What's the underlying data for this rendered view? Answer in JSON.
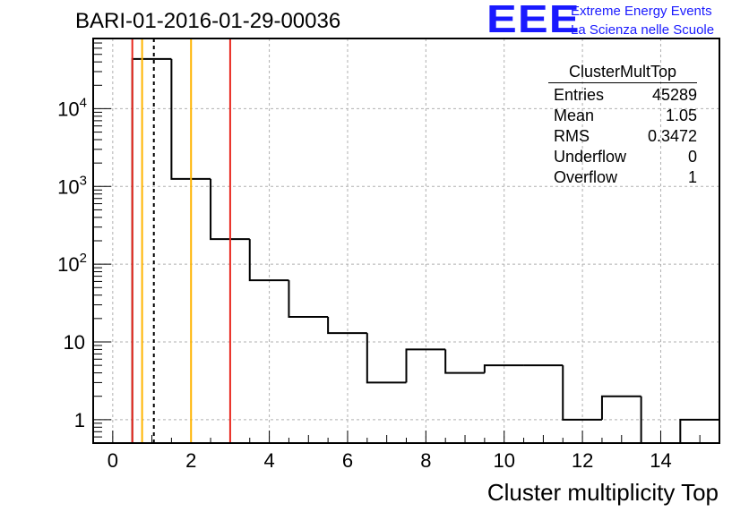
{
  "title": "BARI-01-2016-01-29-00036",
  "logo": {
    "mark": "EEE",
    "line1": "Extreme Energy Events",
    "line2": "La Scienza nelle Scuole",
    "color": "#1a1aff"
  },
  "stats_box": {
    "title": "ClusterMultTop",
    "rows": [
      {
        "label": "Entries",
        "value": "45289"
      },
      {
        "label": "Mean",
        "value": "1.05"
      },
      {
        "label": "RMS",
        "value": "0.3472"
      },
      {
        "label": "Underflow",
        "value": "0"
      },
      {
        "label": "Overflow",
        "value": "1"
      }
    ]
  },
  "chart_data": {
    "type": "histogram",
    "title": "BARI-01-2016-01-29-00036",
    "xlabel": "Cluster multiplicity Top",
    "ylabel": "",
    "xlim": [
      -0.5,
      15.5
    ],
    "ylim": [
      0.5,
      80000
    ],
    "yscale": "log",
    "grid": true,
    "bin_edges": [
      0.5,
      1.5,
      2.5,
      3.5,
      4.5,
      5.5,
      6.5,
      7.5,
      8.5,
      9.5,
      10.5,
      11.5,
      12.5,
      13.5,
      14.5,
      15.5
    ],
    "counts": [
      43600,
      1250,
      210,
      62,
      21,
      13,
      3,
      8,
      4,
      5,
      5,
      1,
      2,
      0,
      1
    ],
    "x_ticks": [
      0,
      2,
      4,
      6,
      8,
      10,
      12,
      14
    ],
    "x_tick_labels": [
      "0",
      "2",
      "4",
      "6",
      "8",
      "10",
      "12",
      "14"
    ],
    "y_ticks": [
      1,
      10,
      100,
      1000,
      10000
    ],
    "y_tick_labels": [
      {
        "base": "1",
        "exp": ""
      },
      {
        "base": "10",
        "exp": ""
      },
      {
        "base": "10",
        "exp": "2"
      },
      {
        "base": "10",
        "exp": "3"
      },
      {
        "base": "10",
        "exp": "4"
      }
    ],
    "reference_lines": [
      {
        "x": 0.5,
        "color": "#e8281e",
        "style": "solid"
      },
      {
        "x": 0.75,
        "color": "#ffb400",
        "style": "solid"
      },
      {
        "x": 1.05,
        "color": "#000000",
        "style": "dashed"
      },
      {
        "x": 2.0,
        "color": "#ffb400",
        "style": "solid"
      },
      {
        "x": 3.0,
        "color": "#e8281e",
        "style": "solid"
      }
    ]
  }
}
